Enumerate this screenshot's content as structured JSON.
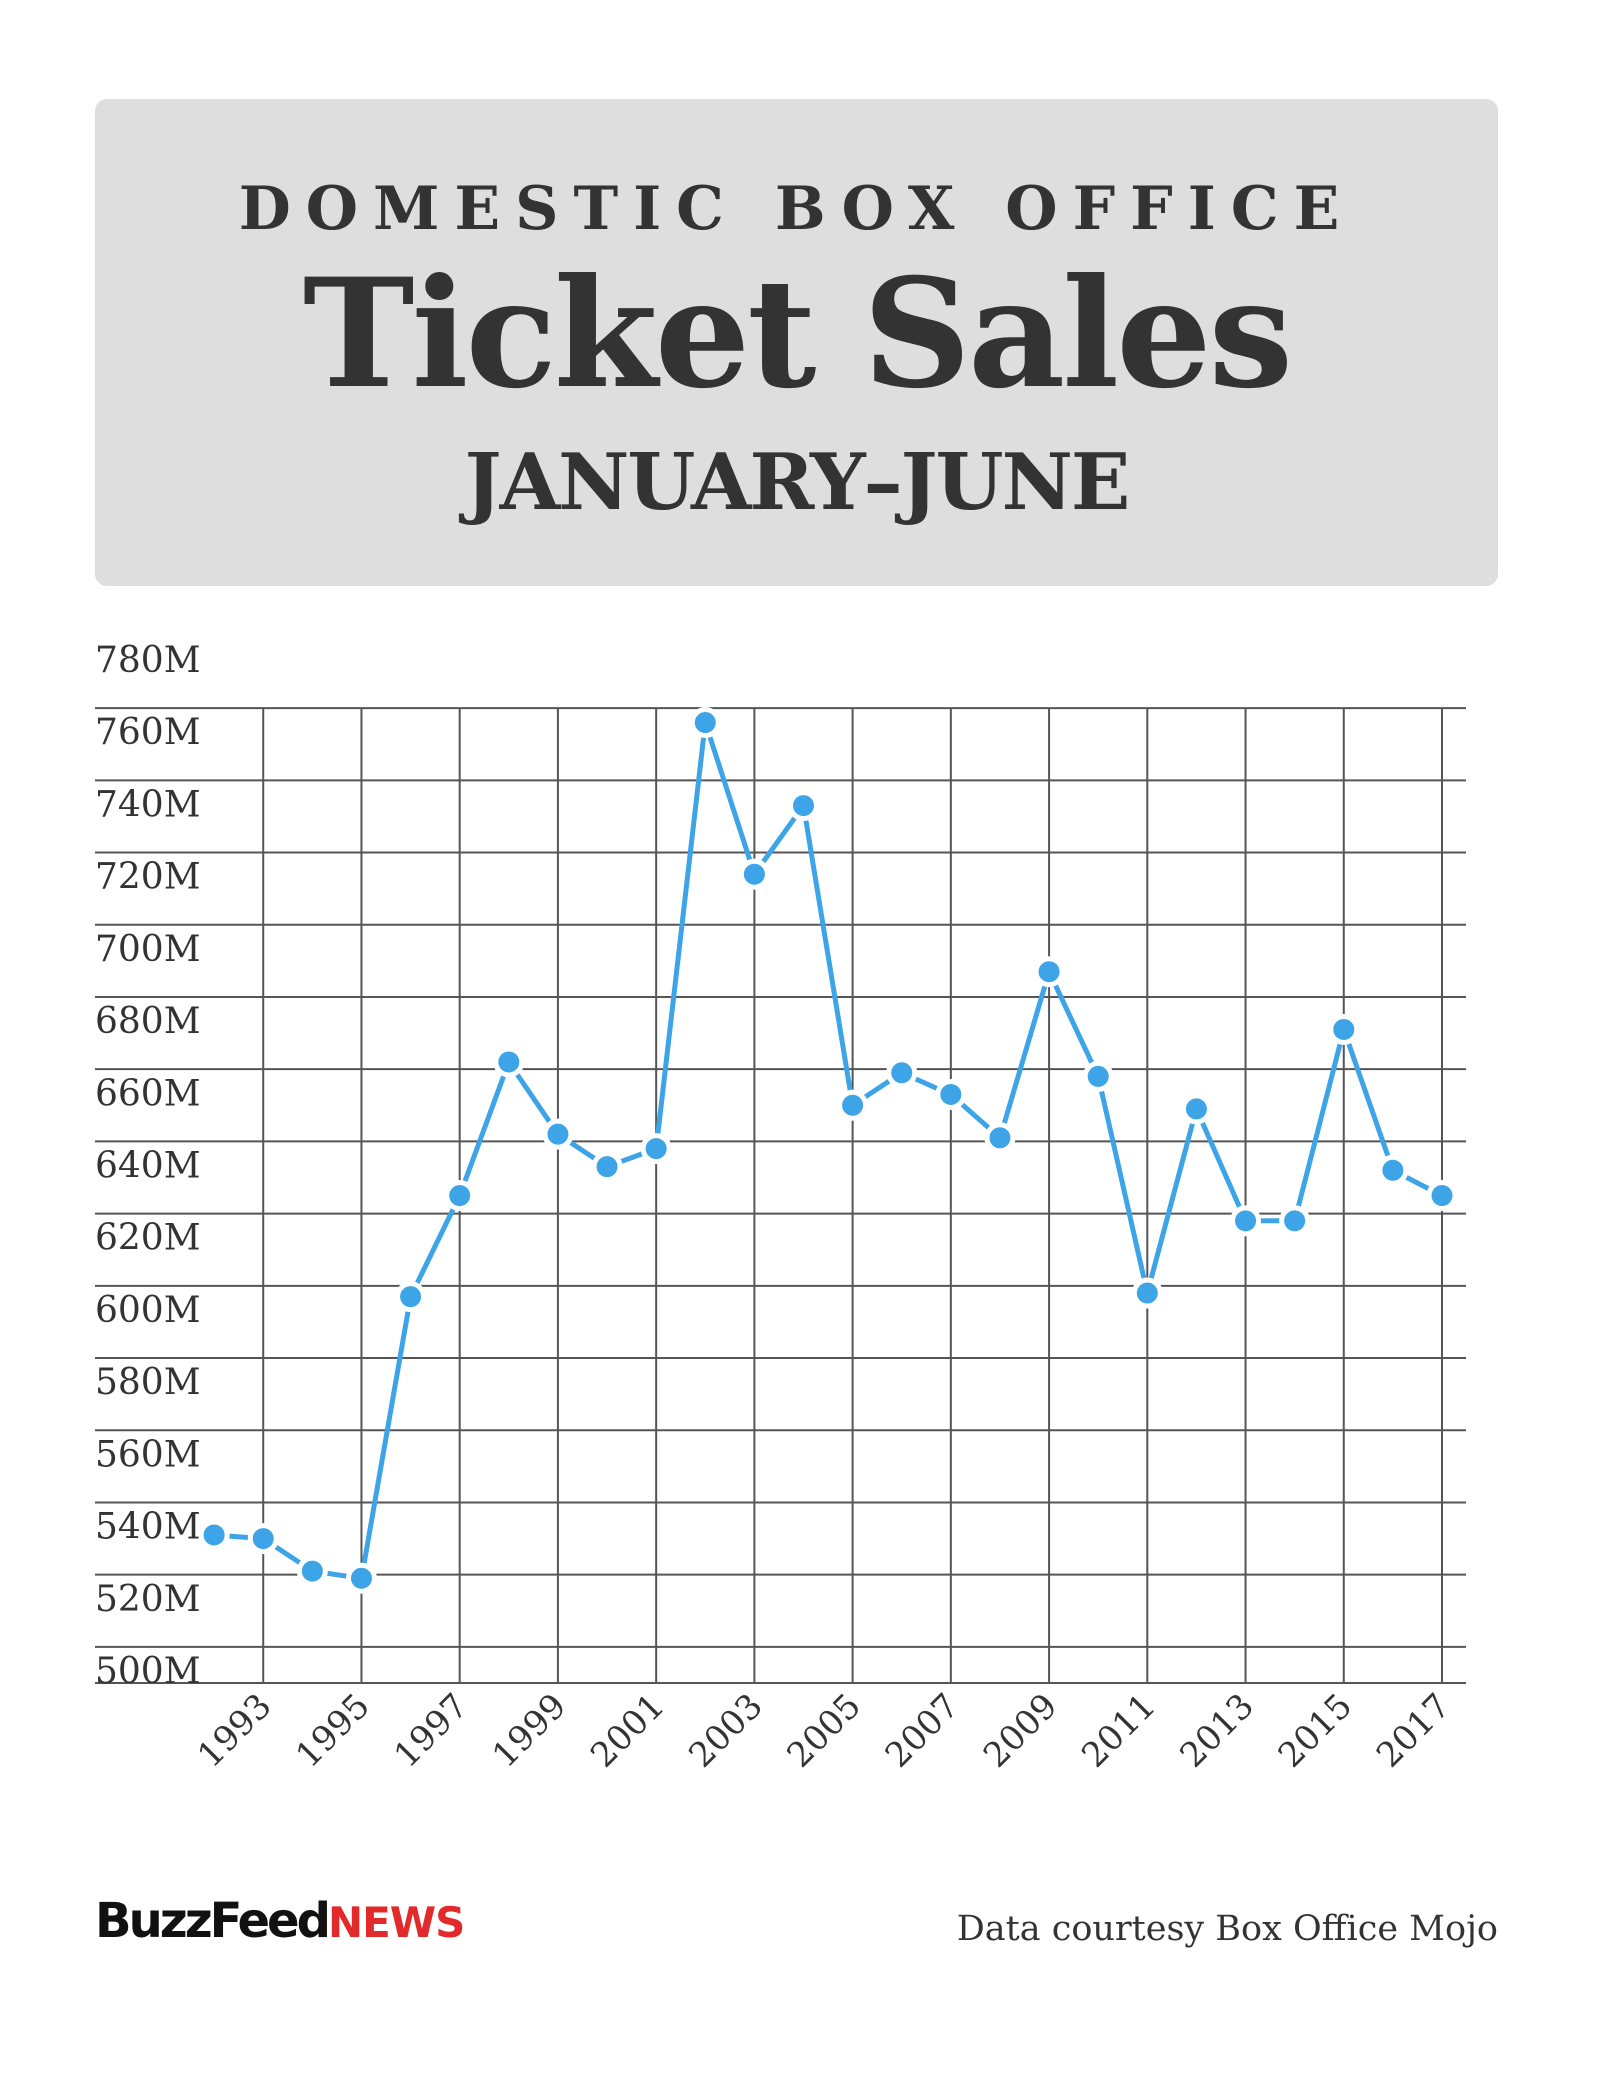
{
  "header": {
    "kicker": "DOMESTIC BOX OFFICE",
    "title": "Ticket Sales",
    "range": "JANUARY–JUNE"
  },
  "footer": {
    "brand_primary": "BuzzFeed",
    "brand_secondary": "NEWS",
    "source": "Data courtesy Box Office Mojo"
  },
  "colors": {
    "header_background": "#dedede",
    "series": "#3ea4e8",
    "grid": "#555555",
    "text": "#333333",
    "brand_red": "#e32a2a"
  },
  "chart_data": {
    "type": "line",
    "title": "Ticket Sales",
    "xlabel": "",
    "ylabel": "",
    "grid": true,
    "legend": "none",
    "ylim": [
      500,
      780
    ],
    "y_unit": "M",
    "y_ticks": [
      "500M",
      "520M",
      "540M",
      "560M",
      "580M",
      "600M",
      "620M",
      "640M",
      "660M",
      "680M",
      "700M",
      "720M",
      "740M",
      "760M",
      "780M"
    ],
    "x_ticks": [
      "1993",
      "1995",
      "1997",
      "1999",
      "2001",
      "2003",
      "2005",
      "2007",
      "2009",
      "2011",
      "2013",
      "2015",
      "2017"
    ],
    "x": [
      1992,
      1993,
      1994,
      1995,
      1996,
      1997,
      1998,
      1999,
      2000,
      2001,
      2002,
      2003,
      2004,
      2005,
      2006,
      2007,
      2008,
      2009,
      2010,
      2011,
      2012,
      2013,
      2014,
      2015,
      2016,
      2017
    ],
    "series": [
      {
        "values": [
          541,
          540,
          531,
          529,
          607,
          635,
          672,
          652,
          643,
          648,
          766,
          724,
          743,
          660,
          669,
          663,
          651,
          697,
          668,
          608,
          659,
          628,
          628,
          681,
          642,
          635
        ]
      }
    ]
  }
}
